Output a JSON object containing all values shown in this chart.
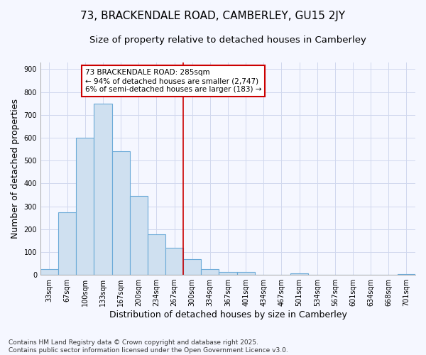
{
  "title": "73, BRACKENDALE ROAD, CAMBERLEY, GU15 2JY",
  "subtitle": "Size of property relative to detached houses in Camberley",
  "xlabel": "Distribution of detached houses by size in Camberley",
  "ylabel": "Number of detached properties",
  "categories": [
    "33sqm",
    "67sqm",
    "100sqm",
    "133sqm",
    "167sqm",
    "200sqm",
    "234sqm",
    "267sqm",
    "300sqm",
    "334sqm",
    "367sqm",
    "401sqm",
    "434sqm",
    "467sqm",
    "501sqm",
    "534sqm",
    "567sqm",
    "601sqm",
    "634sqm",
    "668sqm",
    "701sqm"
  ],
  "values": [
    25,
    275,
    600,
    750,
    540,
    345,
    178,
    120,
    70,
    25,
    12,
    12,
    0,
    0,
    8,
    0,
    0,
    0,
    0,
    0,
    5
  ],
  "bar_color": "#cfe0f0",
  "bar_edge_color": "#6baad8",
  "bar_width": 1.0,
  "vline_x": 7.5,
  "vline_color": "#cc0000",
  "annotation_text": "73 BRACKENDALE ROAD: 285sqm\n← 94% of detached houses are smaller (2,747)\n6% of semi-detached houses are larger (183) →",
  "annotation_box_color": "#ffffff",
  "annotation_box_edge": "#cc0000",
  "ylim": [
    0,
    930
  ],
  "yticks": [
    0,
    100,
    200,
    300,
    400,
    500,
    600,
    700,
    800,
    900
  ],
  "background_color": "#f5f7ff",
  "grid_color": "#d0d8ee",
  "footnote": "Contains HM Land Registry data © Crown copyright and database right 2025.\nContains public sector information licensed under the Open Government Licence v3.0.",
  "title_fontsize": 11,
  "subtitle_fontsize": 9.5,
  "label_fontsize": 9,
  "tick_fontsize": 7,
  "annotation_fontsize": 7.5,
  "footnote_fontsize": 6.5
}
